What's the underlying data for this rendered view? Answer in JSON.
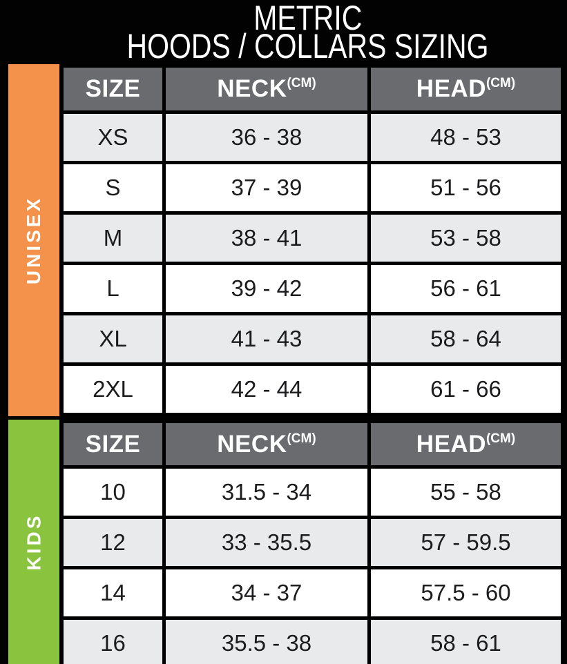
{
  "title": {
    "line1": "METRIC",
    "line2": "HOODS / COLLARS SIZING"
  },
  "colors": {
    "background": "#020202",
    "unisex_bar_orange": "#F4914A",
    "kids_bar_green": "#8AC43E",
    "header_gray": "#6A6B6E",
    "row_shade_gray": "#E9EAEC",
    "row_white": "#FFFFFF",
    "cell_text": "#1C1C1E",
    "header_text": "#FFFFFF"
  },
  "chart_data": [
    {
      "type": "table",
      "section_label": "UNISEX",
      "columns": [
        "SIZE",
        "NECK",
        "HEAD"
      ],
      "unit": "(CM)",
      "rows": [
        [
          "XS",
          "36 - 38",
          "48 - 53"
        ],
        [
          "S",
          "37 - 39",
          "51 - 56"
        ],
        [
          "M",
          "38 - 41",
          "53 - 58"
        ],
        [
          "L",
          "39 - 42",
          "56 - 61"
        ],
        [
          "XL",
          "41 - 43",
          "58 - 64"
        ],
        [
          "2XL",
          "42 - 44",
          "61 - 66"
        ]
      ]
    },
    {
      "type": "table",
      "section_label": "KIDS",
      "columns": [
        "SIZE",
        "NECK",
        "HEAD"
      ],
      "unit": "(CM)",
      "rows": [
        [
          "10",
          "31.5 - 34",
          "55 - 58"
        ],
        [
          "12",
          "33 - 35.5",
          "57 - 59.5"
        ],
        [
          "14",
          "34 - 37",
          "57.5 - 60"
        ],
        [
          "16",
          "35.5 - 38",
          "58 - 61"
        ]
      ]
    }
  ]
}
